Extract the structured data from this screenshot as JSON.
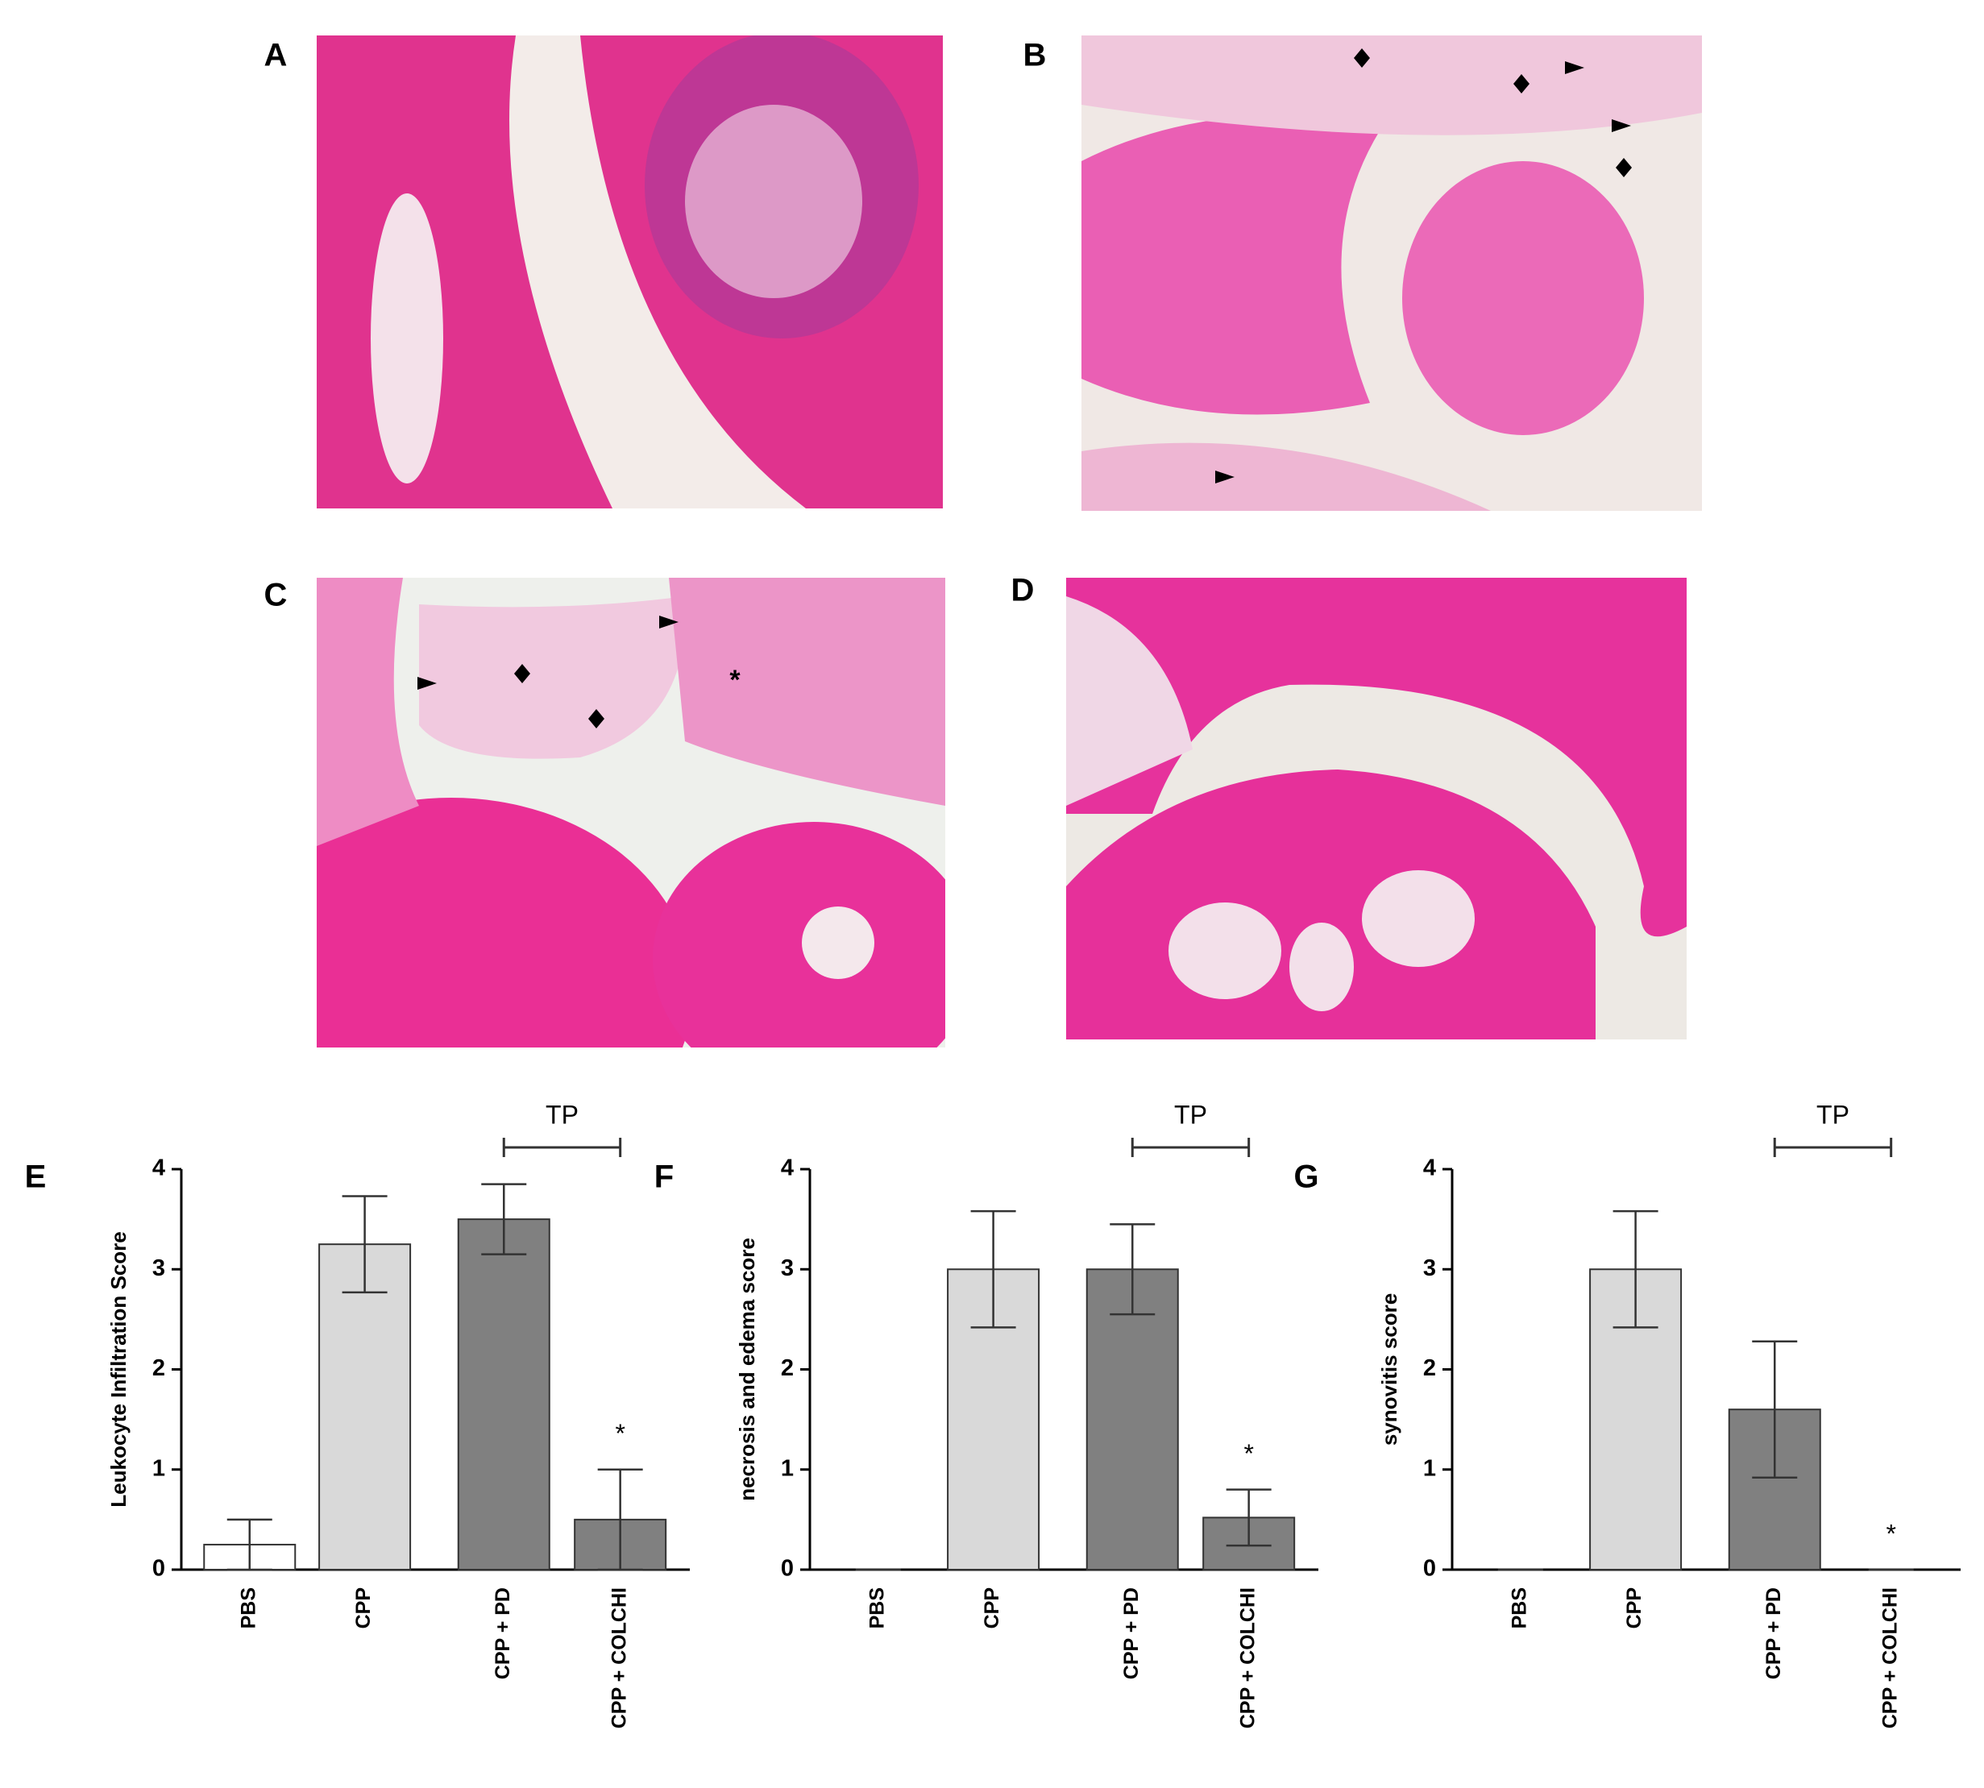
{
  "panels": [
    {
      "label": "A"
    },
    {
      "label": "B"
    },
    {
      "label": "C",
      "annotation": "*"
    },
    {
      "label": "D"
    }
  ],
  "chart_data": [
    {
      "type": "bar",
      "panel": "E",
      "ylabel": "Leukocyte Infiltration Score",
      "categories": [
        "PBS",
        "CPP",
        "CPP + PD",
        "CPP + COLCHI"
      ],
      "values": [
        0.25,
        3.25,
        3.5,
        0.5
      ],
      "errors": [
        0.25,
        0.48,
        0.35,
        0.5
      ],
      "colors": [
        "#ffffff",
        "#d9d9d9",
        "#808080",
        "#808080"
      ],
      "significance": [
        null,
        null,
        null,
        "*"
      ],
      "bracket_label": "TP",
      "ylim": [
        0,
        4
      ],
      "yticks": [
        0,
        1,
        2,
        3,
        4
      ]
    },
    {
      "type": "bar",
      "panel": "F",
      "ylabel": "necrosis and edema score",
      "categories": [
        "PBS",
        "CPP",
        "CPP + PD",
        "CPP + COLCHI"
      ],
      "values": [
        0,
        3,
        3,
        0.52
      ],
      "errors": [
        0,
        0.58,
        0.45,
        0.28
      ],
      "colors": [
        "#ffffff",
        "#d9d9d9",
        "#808080",
        "#808080"
      ],
      "significance": [
        null,
        null,
        null,
        "*"
      ],
      "bracket_label": "TP",
      "ylim": [
        0,
        4
      ],
      "yticks": [
        0,
        1,
        2,
        3,
        4
      ]
    },
    {
      "type": "bar",
      "panel": "G",
      "ylabel": "synovitis score",
      "categories": [
        "PBS",
        "CPP",
        "CPP + PD",
        "CPP + COLCHI"
      ],
      "values": [
        0,
        3,
        1.6,
        0
      ],
      "errors": [
        0,
        0.58,
        0.68,
        0
      ],
      "colors": [
        "#ffffff",
        "#d9d9d9",
        "#808080",
        "#808080"
      ],
      "significance": [
        null,
        null,
        null,
        "*"
      ],
      "bracket_label": "TP",
      "ylim": [
        0,
        4
      ],
      "yticks": [
        0,
        1,
        2,
        3,
        4
      ]
    }
  ]
}
